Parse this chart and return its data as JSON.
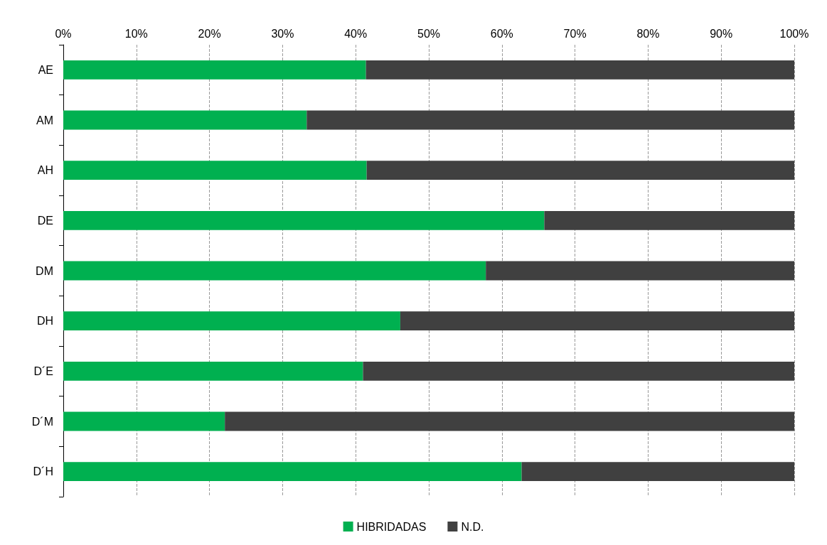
{
  "chart_data": {
    "type": "bar",
    "orientation": "horizontal",
    "stacked": true,
    "categories": [
      "AE",
      "AM",
      "AH",
      "DE",
      "DM",
      "DH",
      "D´E",
      "D´M",
      "D´H"
    ],
    "series": [
      {
        "name": "HIBRIDADAS",
        "color": "#00b050",
        "values": [
          41.4,
          33.3,
          41.5,
          65.8,
          57.8,
          46.1,
          41.0,
          22.1,
          62.7
        ]
      },
      {
        "name": "N.D.",
        "color": "#404040",
        "values": [
          58.6,
          66.7,
          58.5,
          34.2,
          42.2,
          53.9,
          59.0,
          77.9,
          37.3
        ]
      }
    ],
    "xlim": [
      0,
      100
    ],
    "xticks": [
      {
        "value": 0,
        "label": "0%"
      },
      {
        "value": 10,
        "label": "10%"
      },
      {
        "value": 20,
        "label": "20%"
      },
      {
        "value": 30,
        "label": "30%"
      },
      {
        "value": 40,
        "label": "40%"
      },
      {
        "value": 50,
        "label": "50%"
      },
      {
        "value": 60,
        "label": "60%"
      },
      {
        "value": 70,
        "label": "70%"
      },
      {
        "value": 80,
        "label": "80%"
      },
      {
        "value": 90,
        "label": "90%"
      },
      {
        "value": 100,
        "label": "100%"
      }
    ],
    "grid": "x",
    "legend": "bottom"
  }
}
